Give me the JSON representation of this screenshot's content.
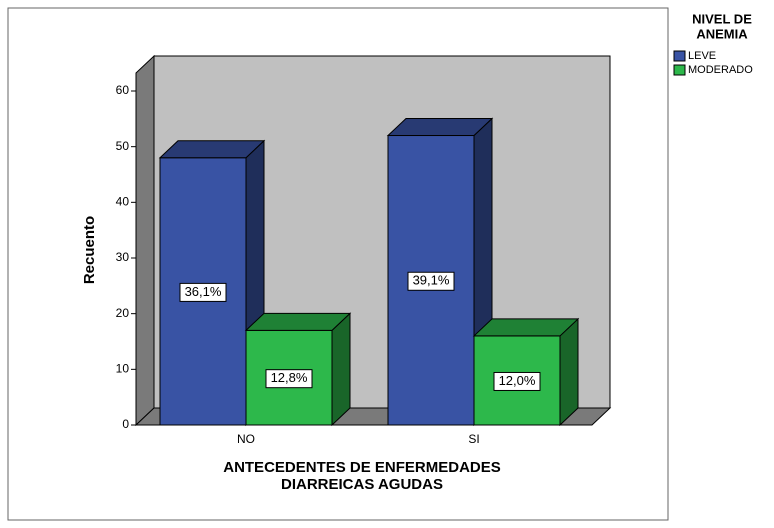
{
  "chart_data": {
    "type": "bar3d",
    "categories": [
      "NO",
      "SI"
    ],
    "xlabel": [
      "ANTECEDENTES DE ENFERMEDADES",
      "DIARREICAS AGUDAS"
    ],
    "ylabel": "Recuento",
    "ylim": [
      0,
      60
    ],
    "yticks": [
      0,
      10,
      20,
      30,
      40,
      50,
      60
    ],
    "legend_title": [
      "NIVEL DE",
      "ANEMIA"
    ],
    "legend": "right",
    "series": [
      {
        "name": "LEVE",
        "color": "#3953a4",
        "values": [
          48,
          52
        ],
        "percent_values": [
          36.1,
          39.1
        ],
        "percent_labels": [
          "36,1%",
          "39,1%"
        ]
      },
      {
        "name": "MODERADO",
        "color": "#2db84b",
        "values": [
          17,
          16
        ],
        "percent_values": [
          12.8,
          12.0
        ],
        "percent_labels": [
          "12,8%",
          "12,0%"
        ]
      }
    ]
  }
}
